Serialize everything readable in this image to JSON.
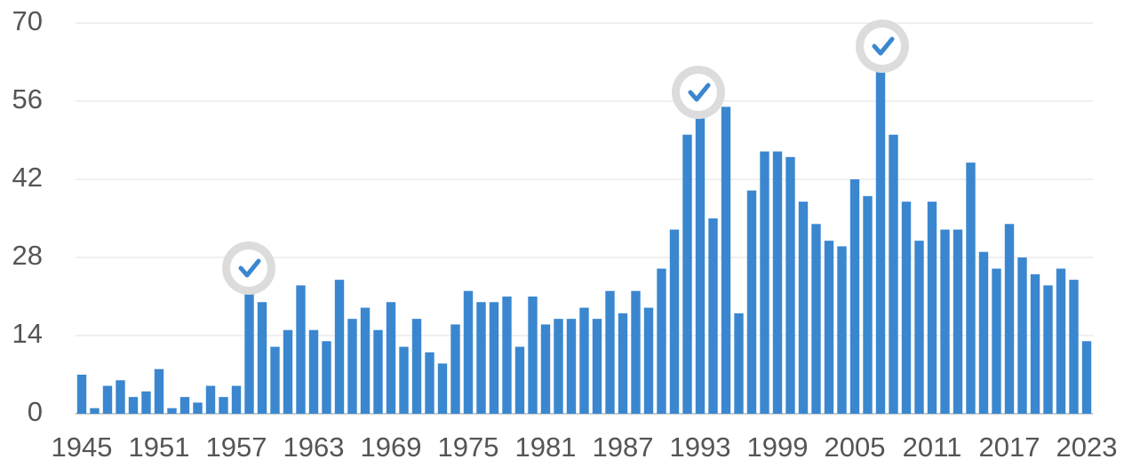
{
  "chart_data": {
    "type": "bar",
    "categories": [
      "1945",
      null,
      null,
      null,
      null,
      null,
      "1951",
      null,
      null,
      null,
      null,
      null,
      "1957",
      null,
      null,
      null,
      null,
      null,
      "1963",
      null,
      null,
      null,
      null,
      null,
      "1969",
      null,
      null,
      null,
      null,
      null,
      "1975",
      null,
      null,
      null,
      null,
      null,
      "1981",
      null,
      null,
      null,
      null,
      null,
      "1987",
      null,
      null,
      null,
      null,
      null,
      "1993",
      null,
      null,
      null,
      null,
      null,
      "1999",
      null,
      null,
      null,
      null,
      null,
      "2005",
      null,
      null,
      null,
      null,
      null,
      "2011",
      null,
      null,
      null,
      null,
      null,
      "2017",
      null,
      null,
      null,
      null,
      null,
      "2023"
    ],
    "values": [
      7,
      1,
      5,
      6,
      3,
      4,
      8,
      1,
      3,
      2,
      5,
      3,
      5,
      23,
      20,
      12,
      15,
      23,
      15,
      13,
      24,
      17,
      19,
      15,
      20,
      12,
      17,
      11,
      9,
      16,
      22,
      20,
      20,
      21,
      12,
      21,
      16,
      17,
      17,
      19,
      17,
      22,
      18,
      22,
      19,
      26,
      33,
      50,
      54,
      35,
      55,
      18,
      40,
      47,
      47,
      46,
      38,
      34,
      31,
      30,
      42,
      39,
      65,
      50,
      38,
      31,
      38,
      33,
      33,
      45,
      29,
      26,
      34,
      28,
      25,
      23,
      26,
      24,
      13
    ],
    "color": "#3a87d0",
    "ylim": [
      0,
      70
    ],
    "yticks": [
      0,
      14,
      28,
      42,
      56,
      70
    ],
    "grid": true
  }
}
